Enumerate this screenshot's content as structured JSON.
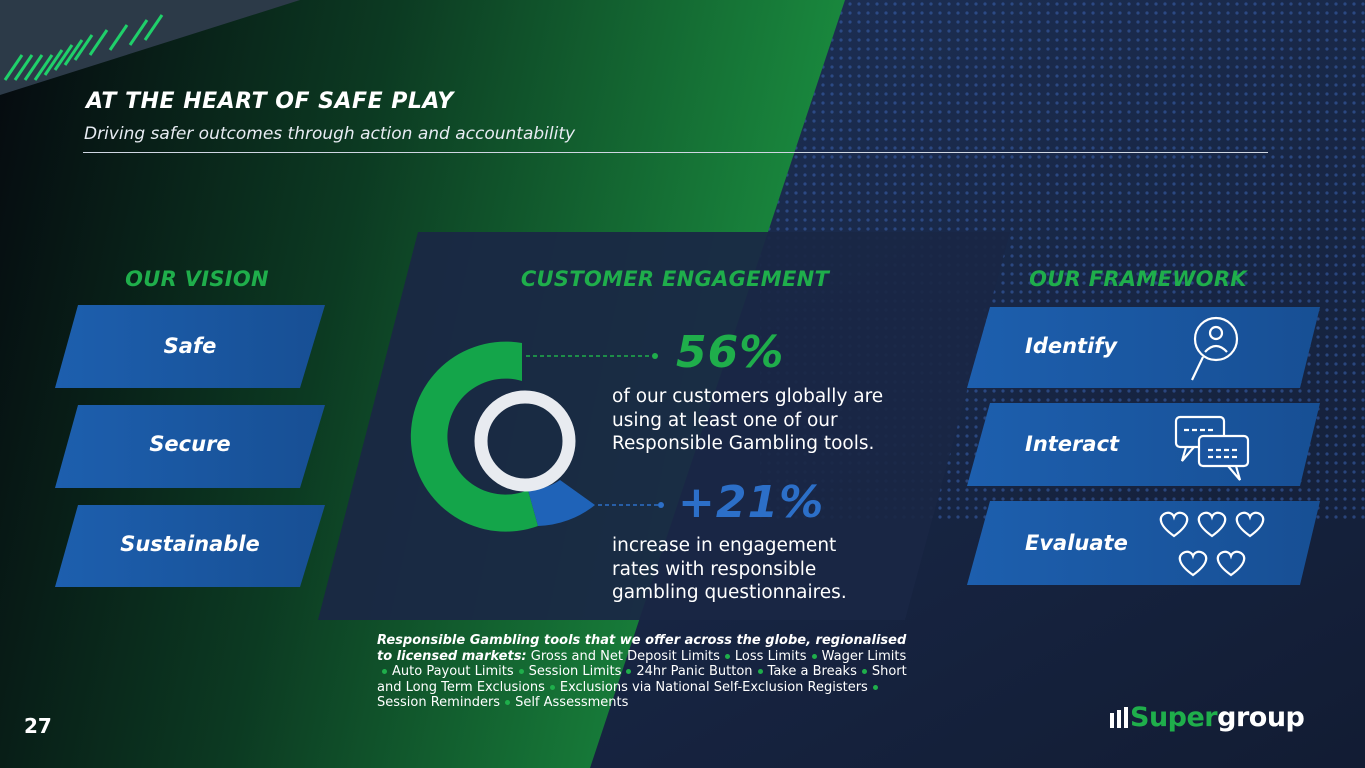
{
  "header": {
    "title": "AT THE HEART OF SAFE PLAY",
    "subtitle": "Driving safer outcomes through action and accountability"
  },
  "vision": {
    "heading": "OUR VISION",
    "items": [
      "Safe",
      "Secure",
      "Sustainable"
    ]
  },
  "engagement": {
    "heading": "CUSTOMER ENGAGEMENT",
    "stat1": {
      "value": "56%",
      "text": "of our customers globally are using at least one of our Responsible Gambling tools."
    },
    "stat2": {
      "value": "+21%",
      "text": "increase in engagement rates with responsible gambling questionnaires."
    }
  },
  "framework": {
    "heading": "OUR FRAMEWORK",
    "items": [
      "Identify",
      "Interact",
      "Evaluate"
    ]
  },
  "tools": {
    "lead": "Responsible Gambling tools that we offer across the globe, regionalised to licensed markets:",
    "items": [
      "Gross and Net Deposit Limits",
      "Loss Limits",
      "Wager Limits",
      "Auto Payout Limits",
      "Session Limits",
      "24hr Panic Button",
      "Take a Breaks",
      "Short and Long Term Exclusions",
      "Exclusions via National Self-Exclusion Registers",
      "Session Reminders",
      "Self Assessments"
    ]
  },
  "page_number": "27",
  "logo": {
    "part1": "Super",
    "part2": "group"
  }
}
